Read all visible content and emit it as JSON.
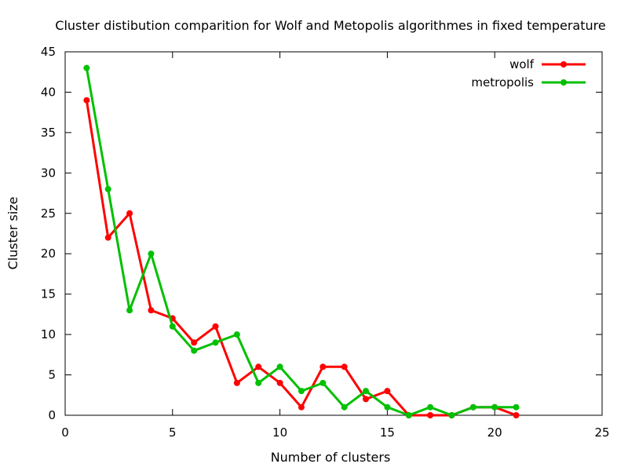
{
  "chart_data": {
    "type": "line",
    "title": "Cluster distibution comparition for Wolf and Metopolis algorithmes in fixed temperature",
    "xlabel": "Number of clusters",
    "ylabel": "Cluster size",
    "xlim": [
      0,
      25
    ],
    "ylim": [
      0,
      45
    ],
    "x_ticks": [
      0,
      5,
      10,
      15,
      20,
      25
    ],
    "y_ticks": [
      0,
      5,
      10,
      15,
      20,
      25,
      30,
      35,
      40,
      45
    ],
    "grid": false,
    "legend_position": "top-right",
    "x": [
      1,
      2,
      3,
      4,
      5,
      6,
      7,
      8,
      9,
      10,
      11,
      12,
      13,
      14,
      15,
      16,
      17,
      18,
      19,
      20,
      21
    ],
    "series": [
      {
        "name": "wolf",
        "color": "#ff0000",
        "values": [
          39,
          22,
          25,
          13,
          12,
          9,
          11,
          4,
          6,
          4,
          1,
          6,
          6,
          2,
          3,
          0,
          0,
          0,
          1,
          1,
          0
        ]
      },
      {
        "name": "metropolis",
        "color": "#00c000",
        "values": [
          43,
          28,
          13,
          20,
          11,
          8,
          9,
          10,
          4,
          6,
          3,
          4,
          1,
          3,
          1,
          0,
          1,
          0,
          1,
          1,
          1
        ]
      }
    ]
  }
}
